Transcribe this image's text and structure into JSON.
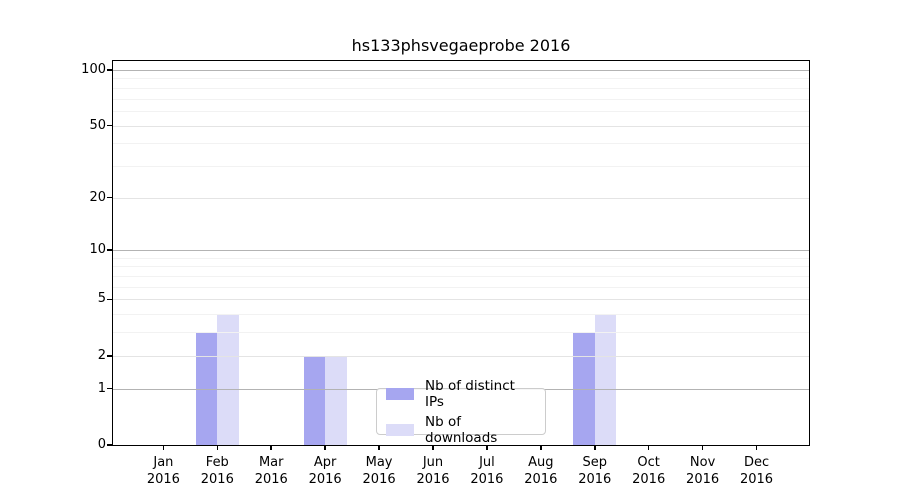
{
  "chart_data": {
    "type": "bar",
    "title": "hs133phsvegaeprobe 2016",
    "categories": [
      "Jan",
      "Feb",
      "Mar",
      "Apr",
      "May",
      "Jun",
      "Jul",
      "Aug",
      "Sep",
      "Oct",
      "Nov",
      "Dec"
    ],
    "year_label": "2016",
    "series": [
      {
        "name": "Nb of distinct IPs",
        "color": "#a6a6f0",
        "values": [
          0,
          3,
          0,
          2,
          0,
          0,
          0,
          0,
          3,
          0,
          0,
          0
        ]
      },
      {
        "name": "Nb of downloads",
        "color": "#dcdcf8",
        "values": [
          0,
          4,
          0,
          2,
          0,
          0,
          0,
          0,
          4,
          0,
          0,
          0
        ]
      }
    ],
    "y_ticks": [
      0,
      1,
      2,
      5,
      10,
      20,
      50,
      100
    ],
    "y_minor_ticks": [
      3,
      4,
      6,
      7,
      8,
      9,
      30,
      40,
      60,
      70,
      80,
      90
    ],
    "y_emphasized_ticks": [
      1,
      10,
      100
    ],
    "scale": "log1p",
    "ylim": [
      0,
      112
    ],
    "grid": true,
    "legend_position": "lower center",
    "colors": {
      "grid_major": "#b3b3b3",
      "grid_mid": "#e4e4e4",
      "grid_minor": "#f2f2f2",
      "axis": "#000000",
      "legend_border": "#cccccc",
      "background": "#ffffff"
    }
  }
}
